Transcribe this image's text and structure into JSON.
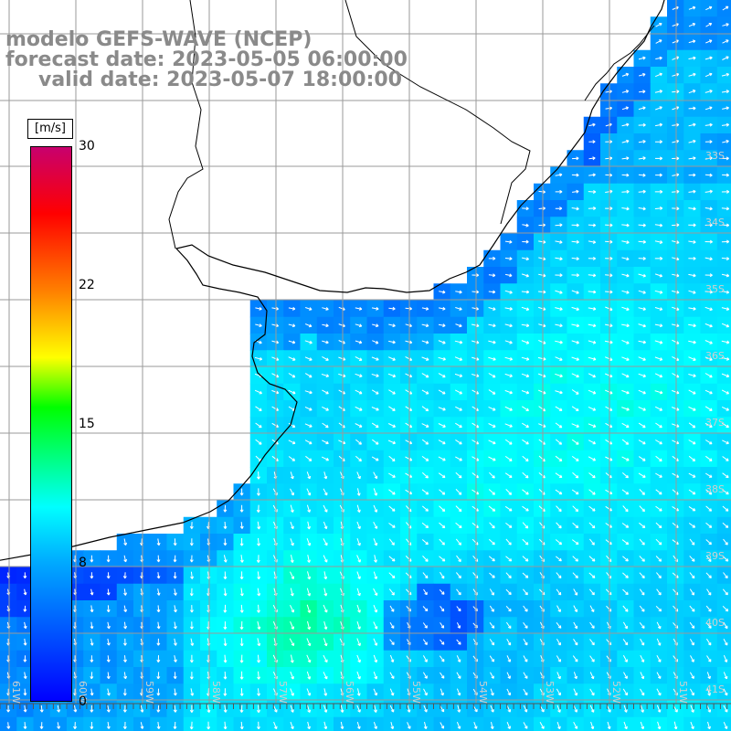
{
  "title": {
    "line1": "modelo GEFS-WAVE (NCEP)",
    "line2": "forecast date: 2023-05-05 06:00:00",
    "line3": "valid date: 2023-05-07 18:00:00"
  },
  "colorbar": {
    "unit": "[m/s]",
    "tick_labels": [
      "30",
      "22",
      "15",
      "8",
      "0"
    ],
    "range": [
      0,
      30
    ]
  },
  "map": {
    "latitude_labels": [
      "33S",
      "34S",
      "35S",
      "36S",
      "37S",
      "38S",
      "39S",
      "40S",
      "41S"
    ],
    "longitude_labels": [
      "61W",
      "60W",
      "59W",
      "58W",
      "57W",
      "56W",
      "55W",
      "54W",
      "53W",
      "52W",
      "51W"
    ],
    "colors": {
      "land": "#ffffff",
      "coastline": "#000000",
      "grid": "#9a9a9a",
      "arrow": "#ffffff"
    }
  }
}
